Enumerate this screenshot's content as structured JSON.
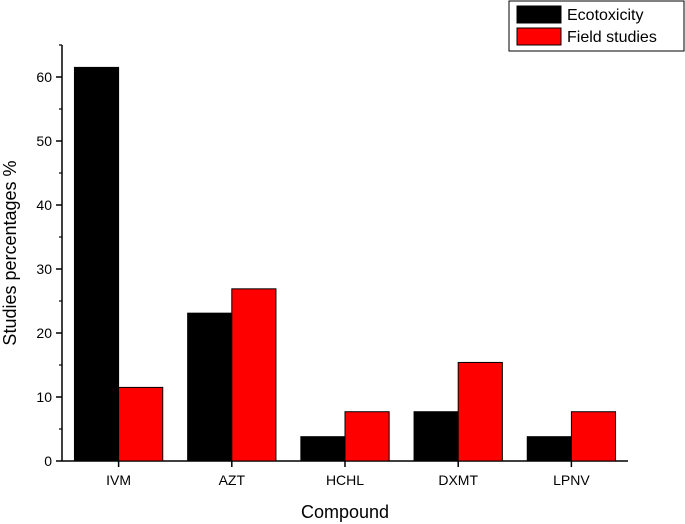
{
  "chart_data": {
    "type": "bar",
    "xlabel": "Compound",
    "ylabel": "Studies percentages %",
    "categories": [
      "IVM",
      "AZT",
      "HCHL",
      "DXMT",
      "LPNV"
    ],
    "series": [
      {
        "name": "Ecotoxicity",
        "color": "#000000",
        "values": [
          61.5,
          23.1,
          3.8,
          7.7,
          3.8
        ]
      },
      {
        "name": "Field studies",
        "color": "#ff0000",
        "values": [
          11.5,
          26.9,
          7.7,
          15.4,
          7.7
        ]
      }
    ],
    "ylim": [
      0,
      65
    ],
    "yticks": [
      0,
      10,
      20,
      30,
      40,
      50,
      60
    ],
    "legend_position": "top-right",
    "grid": false
  }
}
